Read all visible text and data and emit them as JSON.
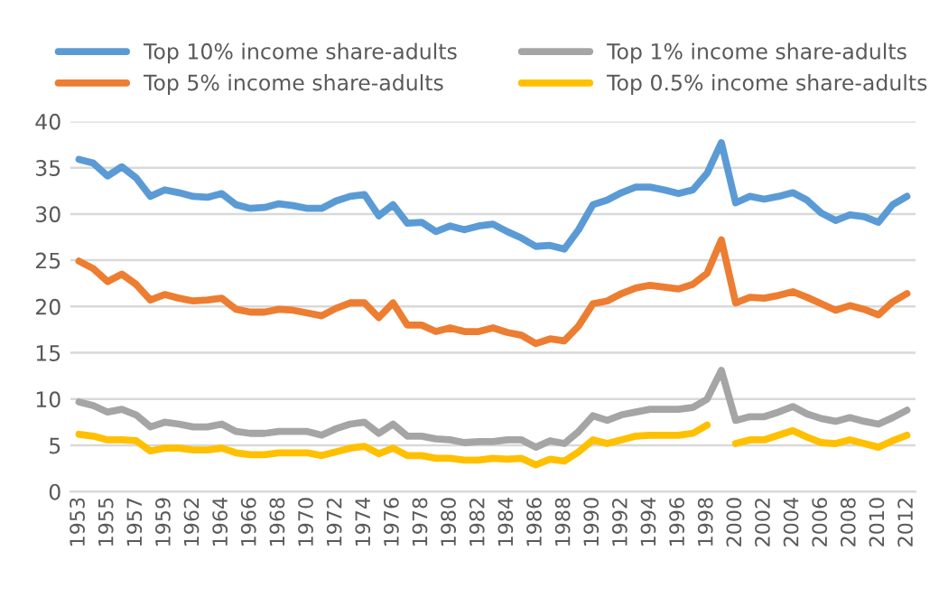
{
  "chart_data": {
    "type": "line",
    "categories": [
      "1953",
      null,
      "1955",
      null,
      "1957",
      null,
      "1959",
      null,
      "1962",
      null,
      "1964",
      null,
      "1966",
      null,
      "1968",
      null,
      "1970",
      null,
      "1972",
      null,
      "1974",
      null,
      "1976",
      null,
      "1978",
      null,
      "1980",
      null,
      "1982",
      null,
      "1984",
      null,
      "1986",
      null,
      "1988",
      null,
      "1990",
      null,
      "1992",
      null,
      "1994",
      null,
      "1996",
      null,
      "1998",
      null,
      "2000",
      null,
      "2002",
      null,
      "2004",
      null,
      "2006",
      null,
      "2008",
      null,
      "2010",
      null,
      "2012"
    ],
    "series": [
      {
        "name": "Top 10% income share-adults",
        "color": "#5b9bd5",
        "values": [
          35.9,
          35.5,
          34.1,
          35.1,
          33.9,
          31.9,
          32.6,
          32.3,
          31.9,
          31.8,
          32.2,
          31.0,
          30.6,
          30.7,
          31.1,
          30.9,
          30.6,
          30.6,
          31.4,
          31.9,
          32.1,
          29.8,
          31.0,
          29.0,
          29.1,
          28.1,
          28.7,
          28.3,
          28.7,
          28.9,
          28.1,
          27.4,
          26.5,
          26.6,
          26.2,
          28.3,
          31.0,
          31.5,
          32.3,
          32.9,
          32.9,
          32.6,
          32.2,
          32.6,
          34.4,
          37.7,
          31.2,
          31.9,
          31.6,
          31.9,
          32.3,
          31.5,
          30.1,
          29.3,
          29.9,
          29.7,
          29.1,
          31.0,
          31.9
        ]
      },
      {
        "name": "Top 5% income share-adults",
        "color": "#ed7d31",
        "values": [
          24.9,
          24.1,
          22.7,
          23.5,
          22.4,
          20.7,
          21.3,
          20.9,
          20.6,
          20.7,
          20.9,
          19.7,
          19.4,
          19.4,
          19.7,
          19.6,
          19.3,
          19.0,
          19.8,
          20.4,
          20.4,
          18.8,
          20.4,
          18.0,
          18.0,
          17.3,
          17.7,
          17.3,
          17.3,
          17.7,
          17.2,
          16.9,
          16.0,
          16.5,
          16.3,
          17.9,
          20.3,
          20.6,
          21.4,
          22.0,
          22.3,
          22.1,
          21.9,
          22.4,
          23.6,
          27.2,
          20.4,
          21.0,
          20.9,
          21.2,
          21.6,
          21.0,
          20.3,
          19.6,
          20.1,
          19.7,
          19.1,
          20.5,
          21.4
        ]
      },
      {
        "name": "Top 1% income share-adults",
        "color": "#a5a5a5",
        "values": [
          9.7,
          9.3,
          8.6,
          8.9,
          8.3,
          7.0,
          7.5,
          7.3,
          7.0,
          7.0,
          7.3,
          6.5,
          6.3,
          6.3,
          6.5,
          6.5,
          6.5,
          6.1,
          6.8,
          7.3,
          7.5,
          6.3,
          7.3,
          6.0,
          6.0,
          5.7,
          5.6,
          5.3,
          5.4,
          5.4,
          5.6,
          5.6,
          4.8,
          5.5,
          5.2,
          6.5,
          8.2,
          7.7,
          8.3,
          8.6,
          8.9,
          8.9,
          8.9,
          9.1,
          10.0,
          13.1,
          7.7,
          8.1,
          8.1,
          8.6,
          9.2,
          8.4,
          7.9,
          7.6,
          8.0,
          7.6,
          7.3,
          8.0,
          8.8
        ]
      },
      {
        "name": "Top 0.5% income share-adults",
        "color": "#ffc000",
        "values": [
          6.2,
          6.0,
          5.6,
          5.6,
          5.5,
          4.4,
          4.7,
          4.7,
          4.5,
          4.5,
          4.7,
          4.2,
          4.0,
          4.0,
          4.2,
          4.2,
          4.2,
          3.9,
          4.3,
          4.7,
          4.9,
          4.1,
          4.7,
          3.9,
          3.9,
          3.6,
          3.6,
          3.4,
          3.4,
          3.6,
          3.5,
          3.6,
          2.9,
          3.5,
          3.3,
          4.3,
          5.6,
          5.2,
          5.6,
          6.0,
          6.1,
          6.1,
          6.1,
          6.3,
          7.2,
          null,
          5.2,
          5.6,
          5.6,
          6.1,
          6.6,
          5.9,
          5.3,
          5.2,
          5.6,
          5.2,
          4.8,
          5.5,
          6.1
        ]
      }
    ],
    "ylim": [
      0,
      40
    ],
    "yticks": [
      0,
      5,
      10,
      15,
      20,
      25,
      30,
      35,
      40
    ],
    "grid": "y",
    "legend": "top",
    "marker": "none",
    "line_style": "solid"
  }
}
